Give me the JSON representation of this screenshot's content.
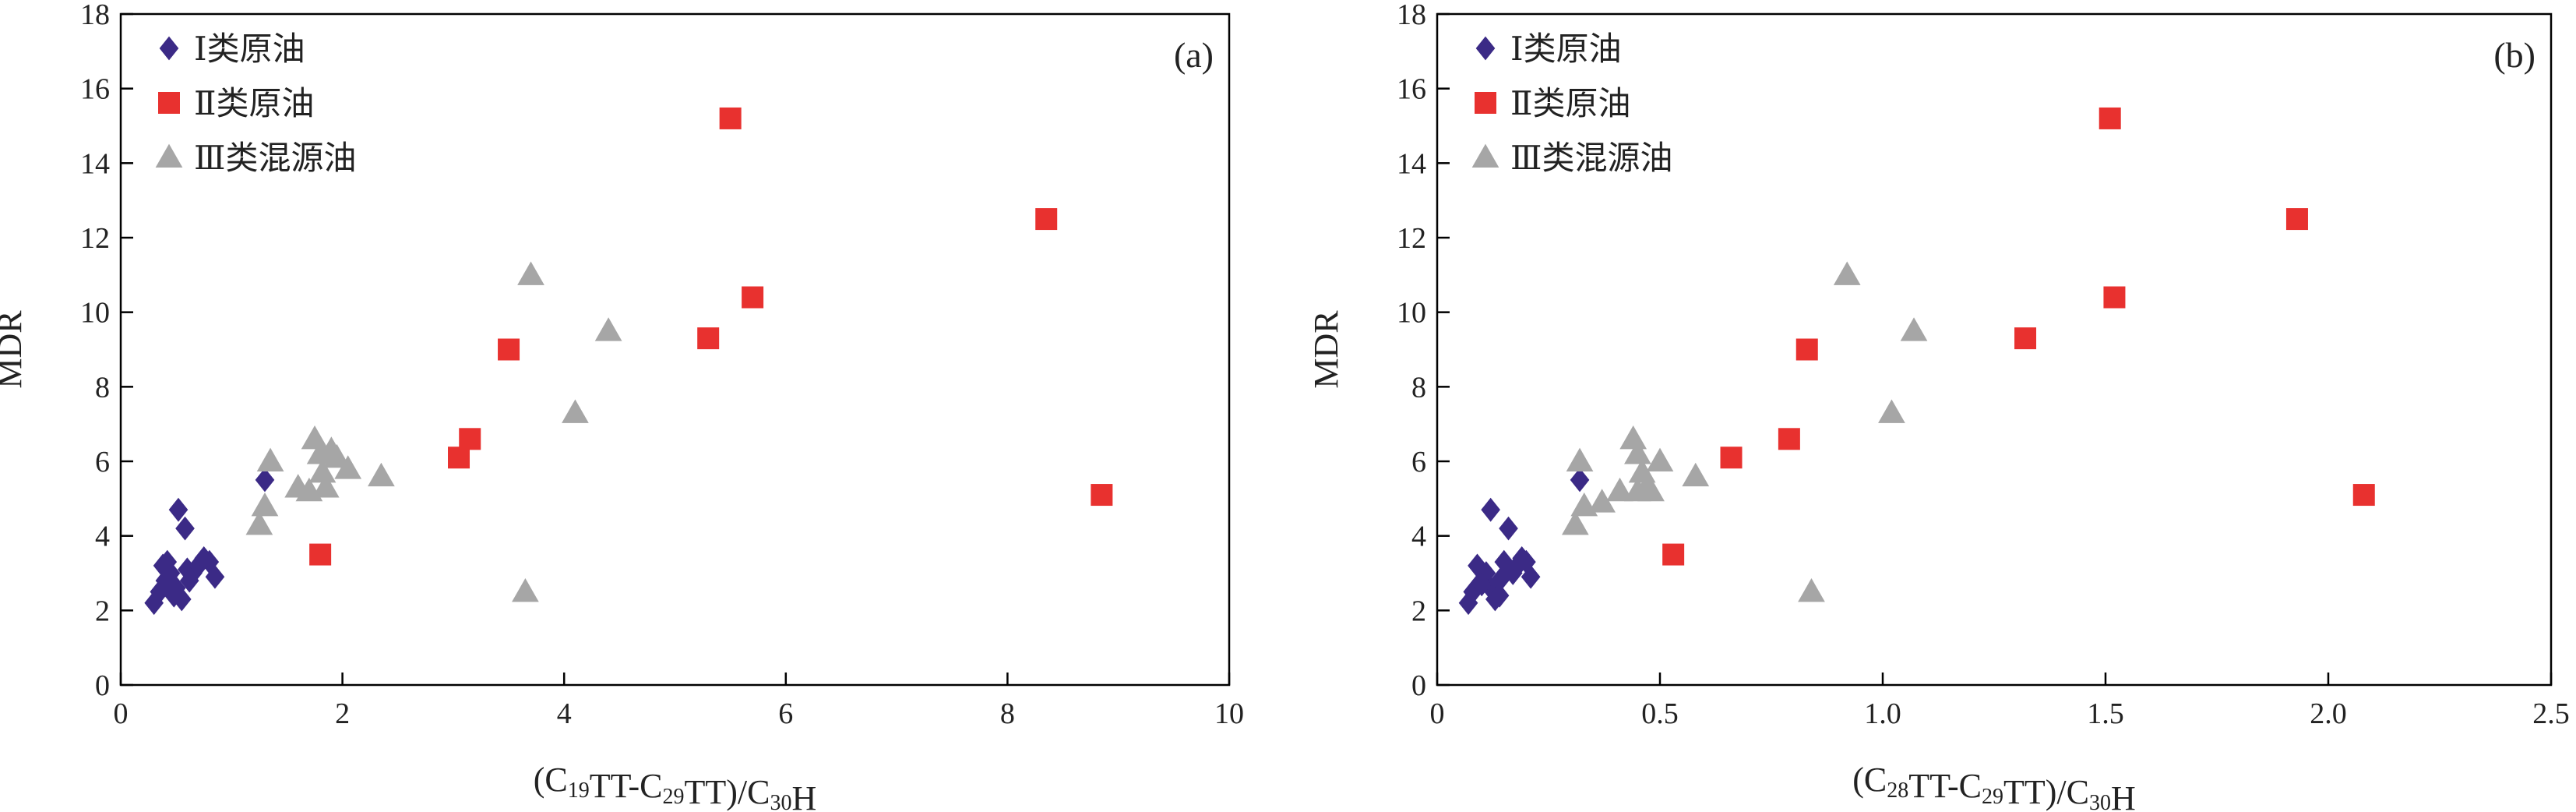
{
  "colors": {
    "class1": "#3b2a86",
    "class2": "#e8312f",
    "class3": "#a6a6a6",
    "axis": "#000000"
  },
  "chart_data": [
    {
      "type": "scatter",
      "panel_label": "(a)",
      "xlabel": {
        "prefix": "(C",
        "s1": "19",
        "mid1": "TT-C",
        "s2": "29",
        "mid2": "TT)/C",
        "s3": "30",
        "suffix": "H"
      },
      "ylabel": "MDR",
      "xlim": [
        0,
        10
      ],
      "ylim": [
        0,
        18
      ],
      "xticks": [
        0,
        2,
        4,
        6,
        8,
        10
      ],
      "xtick_labels": [
        "0",
        "2",
        "4",
        "6",
        "8",
        "10"
      ],
      "yticks": [
        0,
        2,
        4,
        6,
        8,
        10,
        12,
        14,
        16,
        18
      ],
      "ytick_labels": [
        "0",
        "2",
        "4",
        "6",
        "8",
        "10",
        "12",
        "14",
        "16",
        "18"
      ],
      "legend_position": "top-left",
      "series": [
        {
          "name": "Ⅰ类原油",
          "marker": "diamond",
          "color": "#3b2a86",
          "x": [
            0.3,
            0.35,
            0.4,
            0.38,
            0.45,
            0.5,
            0.55,
            0.48,
            0.42,
            0.6,
            0.65,
            0.7,
            0.75,
            0.8,
            0.85,
            0.52,
            0.58,
            0.46,
            0.62,
            1.3
          ],
          "y": [
            2.2,
            2.5,
            2.8,
            3.2,
            3.0,
            2.6,
            2.3,
            2.4,
            3.3,
            3.1,
            3.0,
            3.2,
            3.4,
            3.3,
            2.9,
            4.7,
            4.2,
            2.7,
            2.8,
            5.5
          ]
        },
        {
          "name": "Ⅱ类原油",
          "marker": "square",
          "color": "#e8312f",
          "x": [
            1.8,
            3.05,
            3.15,
            3.5,
            5.3,
            5.5,
            5.7,
            8.35,
            8.85
          ],
          "y": [
            3.5,
            6.1,
            6.6,
            9.0,
            9.3,
            15.2,
            10.4,
            12.5,
            5.1
          ]
        },
        {
          "name": "Ⅲ类混源油",
          "marker": "triangle",
          "color": "#a6a6a6",
          "x": [
            1.25,
            1.3,
            1.35,
            1.6,
            1.7,
            1.75,
            1.8,
            1.82,
            1.85,
            1.9,
            1.95,
            2.05,
            2.35,
            3.65,
            3.7,
            4.1,
            4.4
          ],
          "y": [
            4.3,
            4.8,
            6.0,
            5.3,
            5.2,
            6.6,
            6.2,
            5.7,
            5.3,
            6.3,
            6.1,
            5.8,
            5.6,
            2.5,
            11.0,
            7.3,
            9.5
          ]
        }
      ]
    },
    {
      "type": "scatter",
      "panel_label": "(b)",
      "xlabel": {
        "prefix": "(C",
        "s1": "28",
        "mid1": "TT-C",
        "s2": "29",
        "mid2": "TT)/C",
        "s3": "30",
        "suffix": "H"
      },
      "ylabel": "MDR",
      "xlim": [
        0,
        2.5
      ],
      "ylim": [
        0,
        18
      ],
      "xticks": [
        0,
        0.5,
        1.0,
        1.5,
        2.0,
        2.5
      ],
      "xtick_labels": [
        "0",
        "0.5",
        "1.0",
        "1.5",
        "2.0",
        "2.5"
      ],
      "yticks": [
        0,
        2,
        4,
        6,
        8,
        10,
        12,
        14,
        16,
        18
      ],
      "ytick_labels": [
        "0",
        "2",
        "4",
        "6",
        "8",
        "10",
        "12",
        "14",
        "16",
        "18"
      ],
      "legend_position": "top-left",
      "series": [
        {
          "name": "Ⅰ类原油",
          "marker": "diamond",
          "color": "#3b2a86",
          "x": [
            0.07,
            0.08,
            0.09,
            0.1,
            0.11,
            0.12,
            0.13,
            0.14,
            0.15,
            0.16,
            0.17,
            0.18,
            0.19,
            0.2,
            0.21,
            0.12,
            0.16,
            0.1,
            0.14,
            0.32
          ],
          "y": [
            2.2,
            2.5,
            3.2,
            2.8,
            3.0,
            2.6,
            2.3,
            2.4,
            3.3,
            3.1,
            3.0,
            3.2,
            3.4,
            3.3,
            2.9,
            4.7,
            4.2,
            2.7,
            2.8,
            5.5
          ]
        },
        {
          "name": "Ⅱ类原油",
          "marker": "square",
          "color": "#e8312f",
          "x": [
            0.53,
            0.66,
            0.79,
            0.83,
            1.32,
            1.51,
            1.52,
            1.93,
            2.08
          ],
          "y": [
            3.5,
            6.1,
            6.6,
            9.0,
            9.3,
            15.2,
            10.4,
            12.5,
            5.1
          ]
        },
        {
          "name": "Ⅲ类混源油",
          "marker": "triangle",
          "color": "#a6a6a6",
          "x": [
            0.31,
            0.33,
            0.32,
            0.37,
            0.41,
            0.44,
            0.45,
            0.46,
            0.47,
            0.48,
            0.5,
            0.45,
            0.58,
            0.84,
            0.92,
            1.02,
            1.07
          ],
          "y": [
            4.3,
            4.8,
            6.0,
            4.9,
            5.2,
            6.6,
            6.2,
            5.7,
            5.3,
            5.2,
            6.0,
            5.2,
            5.6,
            2.5,
            11.0,
            7.3,
            9.5
          ]
        }
      ]
    }
  ]
}
